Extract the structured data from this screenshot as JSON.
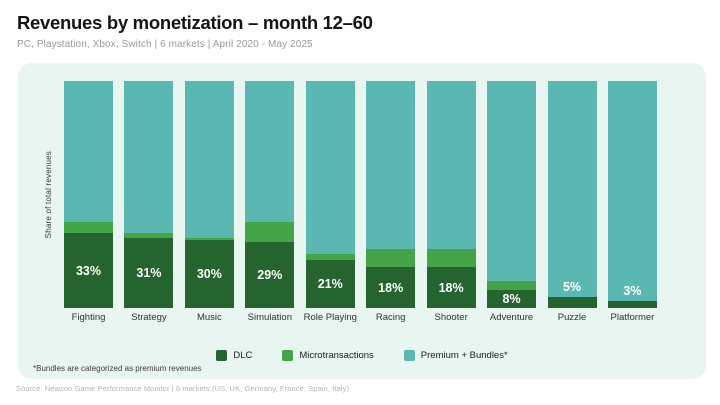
{
  "header": {
    "title": "Revenues by monetization – month 12–60",
    "subtitle": "PC, Playstation, Xbox, Switch | 6 markets | April 2020 - May 2025"
  },
  "chart_data": {
    "type": "bar",
    "variant": "stacked-100",
    "title": "Revenues by monetization – month 12–60",
    "ylabel": "Share of total revenues",
    "xlabel": "",
    "ylim": [
      0,
      100
    ],
    "grid": false,
    "legend_position": "bottom",
    "categories": [
      "Fighting",
      "Strategy",
      "Music",
      "Simulation",
      "Role Playing",
      "Racing",
      "Shooter",
      "Adventure",
      "Puzzle",
      "Platformer"
    ],
    "series": [
      {
        "name": "DLC",
        "color": "#26642f",
        "values": [
          33,
          31,
          30,
          29,
          21,
          18,
          18,
          8,
          5,
          3
        ]
      },
      {
        "name": "Microtransactions",
        "color": "#44a447",
        "values": [
          5,
          2,
          1,
          9,
          3,
          8,
          8,
          4,
          0,
          0
        ]
      },
      {
        "name": "Premium + Bundles*",
        "color": "#5bb7b1",
        "values": [
          62,
          67,
          69,
          62,
          76,
          74,
          74,
          88,
          95,
          97
        ]
      }
    ],
    "bar_labels": [
      "33%",
      "31%",
      "30%",
      "29%",
      "21%",
      "18%",
      "18%",
      "8%",
      "5%",
      "3%"
    ],
    "bar_label_color": "#ffffff"
  },
  "card": {
    "background": "#e8f5f1"
  },
  "footnote": "*Bundles are categorized as premium revenues",
  "source": "Source: Newzoo Game Performance Monitor | 6 markets (US, UK, Germany, France, Spain, Italy)"
}
